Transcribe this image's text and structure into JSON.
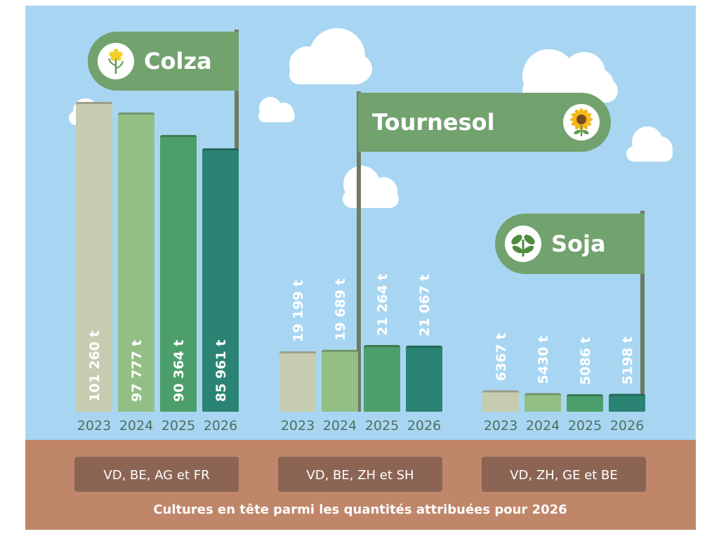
{
  "colors": {
    "sky": "#a8d6f2",
    "ground": "#c0866a",
    "region_box": "#8b6454",
    "flag": "#72a26e",
    "pole": "#6f7a63",
    "cloud": "#ffffff",
    "year_colors": [
      "#c7ccb0",
      "#93bf85",
      "#4c9e6a",
      "#2b8473"
    ]
  },
  "chart_data": {
    "type": "bar",
    "caption": "Cultures en tête parmi les quantités attribuées pour 2026",
    "categories": [
      "2023",
      "2024",
      "2025",
      "2026"
    ],
    "unit": "t",
    "groups": [
      {
        "name": "Colza",
        "icon": "rapeseed-flower-icon",
        "values": [
          101260,
          97777,
          90364,
          85961
        ],
        "labels": [
          "101 260 t",
          "97 777 t",
          "90 364 t",
          "85 961 t"
        ],
        "regions": "VD, BE, AG et FR"
      },
      {
        "name": "Tournesol",
        "icon": "sunflower-icon",
        "values": [
          19199,
          19689,
          21264,
          21067
        ],
        "labels": [
          "19 199 t",
          "19 689 t",
          "21 264 t",
          "21 067 t"
        ],
        "regions": "VD, BE, ZH et SH"
      },
      {
        "name": "Soja",
        "icon": "soybean-plant-icon",
        "values": [
          6367,
          5430,
          5086,
          5198
        ],
        "labels": [
          "6367 t",
          "5430 t",
          "5086 t",
          "5198 t"
        ],
        "regions": "VD, ZH, GE et BE"
      }
    ]
  }
}
